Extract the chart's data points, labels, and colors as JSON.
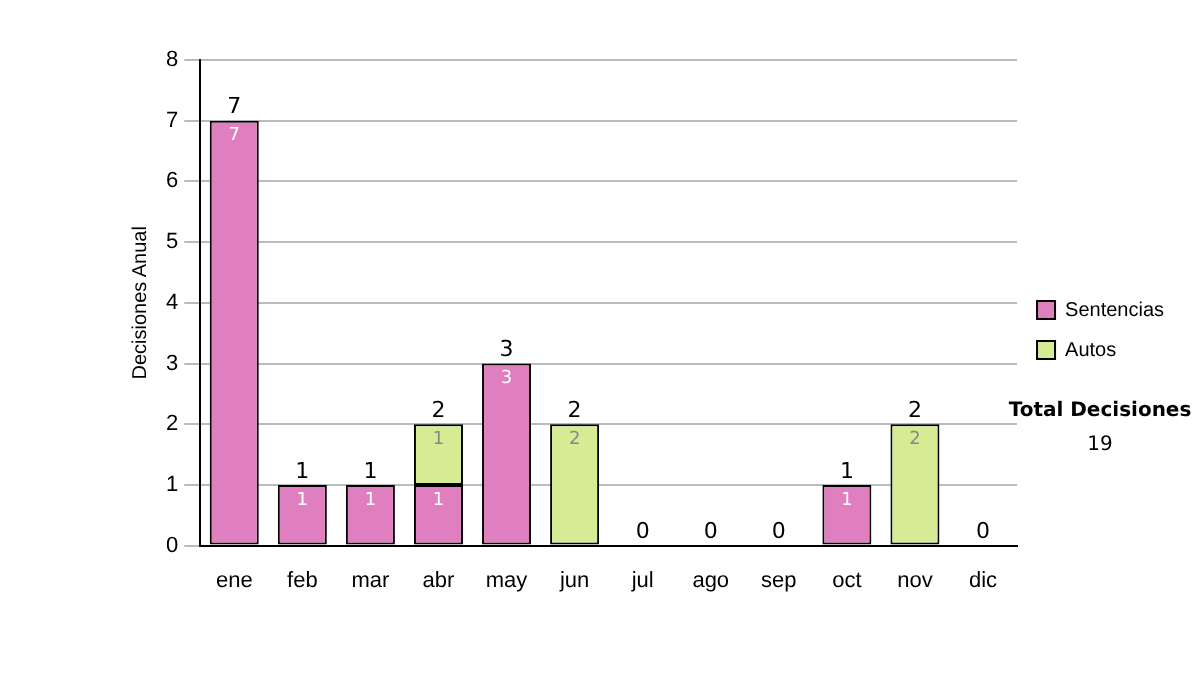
{
  "chart_data": {
    "type": "bar",
    "stacked": true,
    "ylabel": "Decisiones Anual",
    "categories": [
      "ene",
      "feb",
      "mar",
      "abr",
      "may",
      "jun",
      "jul",
      "ago",
      "sep",
      "oct",
      "nov",
      "dic"
    ],
    "series": [
      {
        "name": "Sentencias",
        "color": "#e07fc0",
        "values": [
          7,
          1,
          1,
          1,
          3,
          0,
          0,
          0,
          0,
          1,
          0,
          0
        ],
        "value_labels": [
          "7",
          "1",
          "1",
          "1",
          "3",
          null,
          null,
          null,
          null,
          "1",
          null,
          null
        ]
      },
      {
        "name": "Autos",
        "color": "#d5eb94",
        "values": [
          0,
          0,
          0,
          1,
          0,
          2,
          0,
          0,
          0,
          0,
          2,
          0
        ],
        "value_labels": [
          null,
          null,
          null,
          "1",
          null,
          "2",
          null,
          null,
          null,
          null,
          "2",
          null
        ]
      }
    ],
    "totals": [
      "7",
      "1",
      "1",
      "2",
      "3",
      "2",
      "0",
      "0",
      "0",
      "1",
      "2",
      "0"
    ],
    "ylim": [
      0,
      8
    ],
    "yticks": [
      0,
      1,
      2,
      3,
      4,
      5,
      6,
      7,
      8
    ],
    "grid": "y",
    "legend": "right",
    "annotations": [
      "Total Decisiones",
      "19"
    ]
  }
}
